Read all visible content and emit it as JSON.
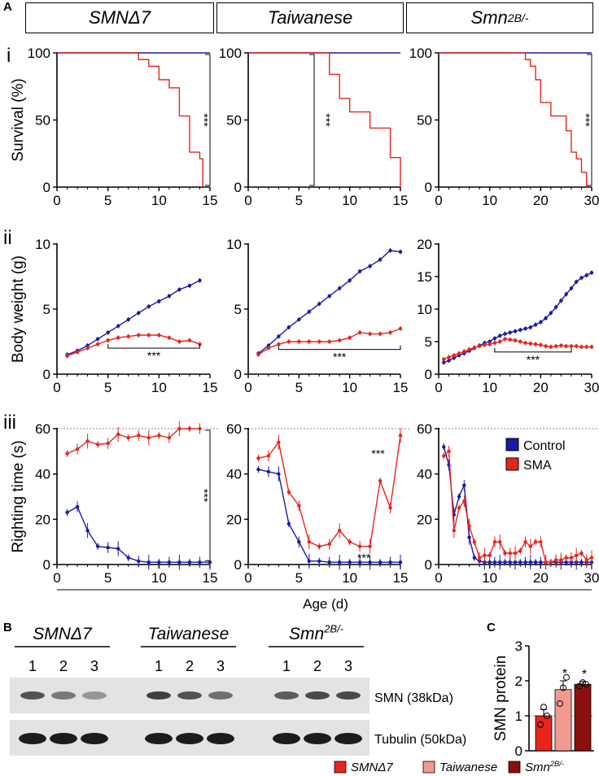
{
  "panel_letters": {
    "a": "A",
    "b": "B",
    "c": "C"
  },
  "row_labels": {
    "i": "i",
    "ii": "ii",
    "iii": "iii"
  },
  "headers": [
    {
      "name": "SMNΔ7",
      "sup": ""
    },
    {
      "name": "Taiwanese",
      "sup": ""
    },
    {
      "name": "Smn",
      "sup": "2B/-"
    }
  ],
  "colors": {
    "control": "#1a1aa6",
    "sma": "#e8251c",
    "sma_dark": "#8b0f0c",
    "sma_light": "#f29a90"
  },
  "shared_x_label": "Age (d)",
  "legend": {
    "control": "Control",
    "sma": "SMA"
  },
  "significance": "***",
  "chart_data": [
    {
      "id": "surv-smnd7",
      "type": "line",
      "step": true,
      "ylabel": "Survival (%)",
      "xlim": [
        0,
        15
      ],
      "ylim": [
        0,
        100
      ],
      "xticks": [
        0,
        5,
        10,
        15
      ],
      "yticks": [
        0,
        50,
        100
      ],
      "series": [
        {
          "name": "Control",
          "x": [
            0,
            15
          ],
          "y": [
            100,
            100
          ]
        },
        {
          "name": "SMA",
          "x": [
            0,
            7,
            8,
            9,
            10,
            11,
            12,
            13,
            14,
            14.3
          ],
          "y": [
            100,
            100,
            95,
            90,
            80,
            74,
            53,
            26,
            21,
            0
          ]
        }
      ],
      "sig": {
        "text": "***",
        "x1": 15,
        "y1": 0,
        "y2": 100
      }
    },
    {
      "id": "surv-taiwanese",
      "type": "line",
      "step": true,
      "xlim": [
        0,
        15
      ],
      "ylim": [
        0,
        100
      ],
      "xticks": [
        0,
        5,
        10,
        15
      ],
      "yticks": [
        0,
        50,
        100
      ],
      "series": [
        {
          "name": "Control",
          "x": [
            0,
            15
          ],
          "y": [
            100,
            100
          ]
        },
        {
          "name": "SMA",
          "x": [
            0,
            7.5,
            8,
            9,
            10,
            12,
            14,
            15
          ],
          "y": [
            100,
            100,
            84,
            66,
            56,
            44,
            22,
            0
          ]
        }
      ],
      "sig": {
        "text": "***",
        "x1": 6.5,
        "y1": 0,
        "y2": 100
      }
    },
    {
      "id": "surv-smn2b",
      "type": "line",
      "step": true,
      "xlim": [
        0,
        30
      ],
      "ylim": [
        0,
        100
      ],
      "xticks": [
        0,
        10,
        20,
        30
      ],
      "yticks": [
        0,
        50,
        100
      ],
      "series": [
        {
          "name": "Control",
          "x": [
            0,
            30
          ],
          "y": [
            100,
            100
          ]
        },
        {
          "name": "SMA",
          "x": [
            0,
            16,
            17,
            18,
            19,
            20,
            22,
            24,
            25,
            26,
            27,
            28,
            29
          ],
          "y": [
            100,
            100,
            95,
            90,
            80,
            63,
            53,
            53,
            42,
            26,
            21,
            11,
            0
          ]
        }
      ],
      "sig": {
        "text": "***",
        "x1": 30,
        "y1": 0,
        "y2": 100
      }
    },
    {
      "id": "bw-smnd7",
      "type": "line",
      "ylabel": "Body weight (g)",
      "xlim": [
        0,
        15
      ],
      "ylim": [
        0,
        10
      ],
      "xticks": [
        0,
        5,
        10,
        15
      ],
      "yticks": [
        0,
        5,
        10
      ],
      "series": [
        {
          "name": "Control",
          "x": [
            1,
            2,
            3,
            4,
            5,
            6,
            7,
            8,
            9,
            10,
            11,
            12,
            13,
            14
          ],
          "y": [
            1.5,
            1.8,
            2.2,
            2.7,
            3.2,
            3.7,
            4.2,
            4.7,
            5.2,
            5.6,
            6.0,
            6.5,
            6.8,
            7.2
          ]
        },
        {
          "name": "SMA",
          "x": [
            1,
            2,
            3,
            4,
            5,
            6,
            7,
            8,
            9,
            10,
            11,
            12,
            13,
            14
          ],
          "y": [
            1.4,
            1.7,
            2.0,
            2.3,
            2.6,
            2.8,
            2.9,
            3.0,
            3.0,
            3.0,
            2.8,
            2.5,
            2.6,
            2.3
          ]
        }
      ],
      "bracket": {
        "x1": 5,
        "x2": 14,
        "y": 2.0,
        "text": "***"
      }
    },
    {
      "id": "bw-taiwanese",
      "type": "line",
      "xlim": [
        0,
        15
      ],
      "ylim": [
        0,
        10
      ],
      "xticks": [
        0,
        5,
        10,
        15
      ],
      "yticks": [
        0,
        5,
        10
      ],
      "series": [
        {
          "name": "Control",
          "x": [
            1,
            2,
            3,
            4,
            5,
            6,
            7,
            8,
            9,
            10,
            11,
            12,
            13,
            14,
            15
          ],
          "y": [
            1.6,
            2.2,
            2.9,
            3.6,
            4.2,
            4.8,
            5.4,
            6.0,
            6.6,
            7.2,
            7.9,
            8.3,
            8.8,
            9.5,
            9.4
          ]
        },
        {
          "name": "SMA",
          "x": [
            1,
            2,
            3,
            4,
            5,
            6,
            7,
            8,
            9,
            10,
            11,
            12,
            13,
            14,
            15
          ],
          "y": [
            1.5,
            2.0,
            2.3,
            2.5,
            2.5,
            2.5,
            2.5,
            2.5,
            2.6,
            2.8,
            3.2,
            3.1,
            3.1,
            3.2,
            3.5
          ]
        }
      ],
      "bracket": {
        "x1": 3,
        "x2": 15,
        "y": 1.9,
        "text": "***"
      }
    },
    {
      "id": "bw-smn2b",
      "type": "line",
      "xlim": [
        0,
        30
      ],
      "ylim": [
        0,
        20
      ],
      "xticks": [
        0,
        10,
        20,
        30
      ],
      "yticks": [
        0,
        5,
        10,
        15,
        20
      ],
      "series": [
        {
          "name": "Control",
          "x": [
            1,
            2,
            3,
            4,
            5,
            6,
            7,
            8,
            9,
            10,
            11,
            12,
            13,
            14,
            15,
            16,
            17,
            18,
            19,
            20,
            21,
            22,
            23,
            24,
            25,
            26,
            27,
            28,
            29,
            30
          ],
          "y": [
            1.8,
            2.1,
            2.5,
            2.9,
            3.2,
            3.6,
            4.0,
            4.4,
            4.8,
            5.0,
            5.5,
            5.9,
            6.2,
            6.4,
            6.6,
            6.8,
            7.0,
            7.2,
            7.6,
            8.0,
            8.6,
            9.4,
            10.3,
            11.3,
            12.3,
            13.2,
            14.2,
            14.8,
            15.2,
            15.6
          ]
        },
        {
          "name": "SMA",
          "x": [
            1,
            2,
            3,
            4,
            5,
            6,
            7,
            8,
            9,
            10,
            11,
            12,
            13,
            14,
            15,
            16,
            17,
            18,
            19,
            20,
            21,
            22,
            23,
            24,
            25,
            26,
            27,
            28,
            29,
            30
          ],
          "y": [
            2.3,
            2.6,
            2.9,
            3.2,
            3.5,
            3.8,
            4.1,
            4.3,
            4.5,
            4.6,
            4.8,
            5.0,
            5.4,
            5.3,
            5.2,
            5.0,
            4.8,
            4.7,
            4.6,
            4.5,
            4.3,
            4.2,
            4.3,
            4.4,
            4.3,
            4.3,
            4.3,
            4.2,
            4.2,
            4.2
          ]
        }
      ],
      "bracket": {
        "x1": 11,
        "x2": 26,
        "y": 3.4,
        "text": "***"
      }
    },
    {
      "id": "rt-smnd7",
      "type": "line",
      "ylabel": "Righting time (s)",
      "xlim": [
        0,
        15
      ],
      "ylim": [
        0,
        60
      ],
      "xticks": [
        0,
        5,
        10,
        15
      ],
      "yticks": [
        0,
        20,
        40,
        60
      ],
      "ref_line": 60,
      "series": [
        {
          "name": "Control",
          "x": [
            1,
            2,
            3,
            4,
            5,
            6,
            7,
            8,
            9,
            10,
            11,
            12,
            13,
            14,
            15
          ],
          "y": [
            23,
            25.5,
            15,
            8,
            7.5,
            7,
            3,
            1.5,
            1,
            1,
            1,
            1,
            1,
            1,
            1
          ]
        },
        {
          "name": "SMA",
          "x": [
            1,
            2,
            3,
            4,
            5,
            6,
            7,
            8,
            9,
            10,
            11,
            12,
            13,
            14
          ],
          "y": [
            49,
            51,
            54.5,
            53,
            53.5,
            57.5,
            56,
            57,
            56,
            57,
            56,
            60,
            60,
            60
          ]
        }
      ],
      "sig": {
        "text": "***",
        "x1": 15,
        "y1": 1,
        "y2": 60
      }
    },
    {
      "id": "rt-taiwanese",
      "type": "line",
      "xlim": [
        0,
        15
      ],
      "ylim": [
        0,
        60
      ],
      "xticks": [
        0,
        5,
        10,
        15
      ],
      "yticks": [
        0,
        20,
        40,
        60
      ],
      "ref_line": 60,
      "series": [
        {
          "name": "Control",
          "x": [
            1,
            2,
            3,
            4,
            5,
            6,
            7,
            8,
            9,
            10,
            11,
            12,
            13,
            14,
            15
          ],
          "y": [
            42,
            41,
            40,
            18,
            10,
            1.5,
            1.5,
            1,
            1,
            1,
            1,
            1,
            1,
            1,
            1
          ]
        },
        {
          "name": "SMA",
          "x": [
            1,
            2,
            3,
            4,
            5,
            6,
            7,
            8,
            9,
            10,
            11,
            12,
            13,
            14,
            15
          ],
          "y": [
            47,
            48,
            54,
            32,
            26,
            10,
            8,
            9,
            15,
            10,
            8,
            8,
            37,
            25,
            57
          ]
        }
      ],
      "annotations": [
        {
          "text": "***",
          "x": 12.8,
          "y": 49
        },
        {
          "text": "***",
          "x": 11.4,
          "y": 3
        }
      ]
    },
    {
      "id": "rt-smn2b",
      "type": "line",
      "xlim": [
        0,
        30
      ],
      "ylim": [
        0,
        60
      ],
      "xticks": [
        0,
        10,
        20,
        30
      ],
      "yticks": [
        0,
        20,
        40,
        60
      ],
      "ref_line": 60,
      "series": [
        {
          "name": "Control",
          "x": [
            1,
            2,
            3,
            4,
            5,
            6,
            7,
            8,
            9,
            10,
            11,
            12,
            13,
            14,
            15,
            16,
            17,
            18,
            19,
            20,
            21,
            22,
            23,
            24,
            25,
            26,
            27,
            28,
            29,
            30
          ],
          "y": [
            52,
            44,
            22,
            30,
            35,
            12,
            3,
            1.5,
            1,
            1,
            1,
            1,
            1,
            1,
            1,
            1,
            1,
            1,
            1,
            1,
            1,
            1,
            1,
            1,
            1,
            1,
            1,
            1,
            1,
            1
          ]
        },
        {
          "name": "SMA",
          "x": [
            1,
            2,
            3,
            4,
            5,
            6,
            7,
            8,
            9,
            10,
            11,
            12,
            13,
            14,
            15,
            16,
            17,
            18,
            19,
            20,
            21,
            22,
            23,
            24,
            25,
            26,
            27,
            28,
            29,
            30
          ],
          "y": [
            48,
            50,
            15,
            25,
            28,
            17,
            10,
            3,
            4,
            4,
            10,
            10,
            5,
            5,
            5,
            6,
            10,
            8,
            10,
            10,
            1,
            1,
            2,
            2,
            3,
            3,
            4,
            5,
            2,
            3
          ]
        }
      ]
    },
    {
      "id": "smn-quant",
      "type": "bar",
      "ylabel": "SMN protein",
      "ylim": [
        0,
        3
      ],
      "yticks": [
        0,
        1,
        2,
        3
      ],
      "ref_line": 1,
      "categories": [
        "SMNΔ7",
        "Taiwanese",
        "Smn2B/-"
      ],
      "values": [
        1.0,
        1.75,
        1.9
      ],
      "errors": [
        0.18,
        0.25,
        0.08
      ],
      "points": [
        [
          0.75,
          1.25,
          1.0
        ],
        [
          1.35,
          1.8,
          2.1
        ],
        [
          1.85,
          1.95,
          1.9
        ]
      ],
      "sig": [
        "",
        "*",
        "*"
      ]
    }
  ],
  "western": {
    "groups": [
      {
        "name": "SMNΔ7",
        "sup": "",
        "lanes": [
          "1",
          "2",
          "3"
        ]
      },
      {
        "name": "Taiwanese",
        "sup": "",
        "lanes": [
          "1",
          "2",
          "3"
        ]
      },
      {
        "name": "Smn",
        "sup": "2B/-",
        "lanes": [
          "1",
          "2",
          "3"
        ]
      }
    ],
    "blot_labels": [
      "SMN (38kDa)",
      "Tubulin (50kDa)"
    ]
  },
  "bar_legend": [
    {
      "name": "SMNΔ7",
      "sup": ""
    },
    {
      "name": "Taiwanese",
      "sup": ""
    },
    {
      "name": "Smn",
      "sup": "2B/-"
    }
  ]
}
